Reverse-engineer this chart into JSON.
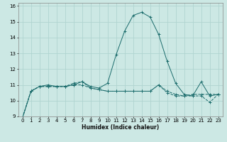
{
  "title": "",
  "xlabel": "Humidex (Indice chaleur)",
  "ylabel": "",
  "bg_color": "#cce8e4",
  "grid_color": "#b0d4d0",
  "line_color": "#1a6b6b",
  "xlim": [
    -0.5,
    23.5
  ],
  "ylim": [
    9,
    16.2
  ],
  "xticks": [
    0,
    1,
    2,
    3,
    4,
    5,
    6,
    7,
    8,
    9,
    10,
    11,
    12,
    13,
    14,
    15,
    16,
    17,
    18,
    19,
    20,
    21,
    22,
    23
  ],
  "yticks": [
    9,
    10,
    11,
    12,
    13,
    14,
    15,
    16
  ],
  "series": [
    {
      "x": [
        0,
        1,
        2,
        3,
        4,
        5,
        6,
        7,
        8,
        9,
        10,
        11,
        12,
        13,
        14,
        15,
        16,
        17,
        18,
        19,
        20,
        21,
        22,
        23
      ],
      "y": [
        8.9,
        10.6,
        10.9,
        10.9,
        10.9,
        10.9,
        11.1,
        11.2,
        10.8,
        10.7,
        10.6,
        10.6,
        10.6,
        10.6,
        10.6,
        10.6,
        11.0,
        10.6,
        10.4,
        10.3,
        10.4,
        10.4,
        10.4,
        10.4
      ],
      "linestyle": "--",
      "marker": "+"
    },
    {
      "x": [
        0,
        1,
        2,
        3,
        4,
        5,
        6,
        7,
        8,
        9,
        10,
        11,
        12,
        13,
        14,
        15,
        16,
        17,
        18,
        19,
        20,
        21,
        22,
        23
      ],
      "y": [
        8.9,
        10.6,
        10.9,
        10.9,
        10.9,
        10.9,
        11.0,
        11.0,
        10.8,
        10.7,
        10.6,
        10.6,
        10.6,
        10.6,
        10.6,
        10.6,
        11.0,
        10.5,
        10.3,
        10.3,
        10.3,
        10.3,
        9.9,
        10.4
      ],
      "linestyle": "--",
      "marker": "+"
    },
    {
      "x": [
        0,
        1,
        2,
        3,
        4,
        5,
        6,
        7,
        8,
        9,
        10,
        11,
        12,
        13,
        14,
        15,
        16,
        17,
        18,
        19,
        20,
        21,
        22,
        23
      ],
      "y": [
        8.9,
        10.6,
        10.9,
        11.0,
        10.9,
        10.9,
        11.0,
        11.2,
        10.9,
        10.8,
        11.1,
        12.9,
        14.4,
        15.4,
        15.6,
        15.3,
        14.2,
        12.5,
        11.1,
        10.4,
        10.3,
        11.2,
        10.3,
        10.4
      ],
      "linestyle": "-",
      "marker": "+"
    }
  ]
}
